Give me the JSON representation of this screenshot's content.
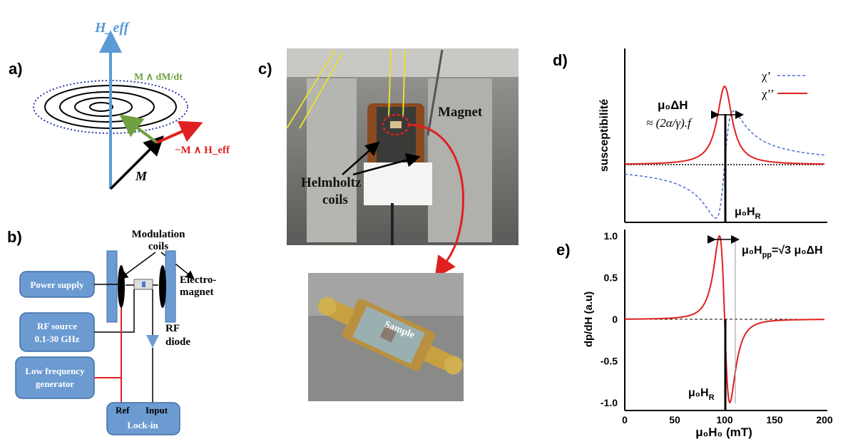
{
  "colors": {
    "h_eff": "#5b9bd5",
    "cross_dm": "#70a040",
    "cross_heff": "#e02020",
    "box_fill": "#6b9bd1",
    "curve_red": "#e02020",
    "curve_blue": "#4a6fd6"
  },
  "panel_a": {
    "label": "a)",
    "h_eff": "H_eff",
    "m_cross_dm_dt": "M ∧ dM/dt",
    "minus_m_cross_heff": "−M ∧ H_eff",
    "m": "M"
  },
  "panel_b": {
    "label": "b)",
    "modulation_coils": [
      "Modulation",
      "coils"
    ],
    "electromagnet": [
      "Electro-",
      "magnet"
    ],
    "power_supply": "Power supply",
    "rf_source": [
      "RF source",
      "0.1-30 GHz"
    ],
    "low_freq": [
      "Low frequency",
      "generator"
    ],
    "rf_diode": [
      "RF",
      "diode"
    ],
    "ref": "Ref",
    "input": "Input",
    "lockin": "Lock-in"
  },
  "panel_c": {
    "label": "c)",
    "magnet": "Magnet",
    "helmholtz": [
      "Helmholtz",
      "coils"
    ],
    "sample": "Sample"
  },
  "panel_d": {
    "label": "d)",
    "ylabel": "susceptibilité",
    "legend_chi1": "χ’",
    "legend_chi2": "χ’’",
    "delta_h": "μ₀ΔH",
    "approx": "≈ (2α/γ).f",
    "resonance": "μ₀H",
    "resonance_sub": "R"
  },
  "panel_e": {
    "label": "e)",
    "ylabel": "dp/dH (a.u)",
    "xlabel": "μ₀H₀ (mT)",
    "hpp": "μ₀H",
    "hpp_sub": "pp",
    "hpp_eq": "=√3 μ₀ΔH",
    "resonance": "μ₀H",
    "resonance_sub": "R",
    "yticks": [
      "1.0",
      "0.5",
      "0",
      "-0.5",
      "-1.0"
    ],
    "xticks": [
      "0",
      "50",
      "100",
      "150",
      "200"
    ]
  },
  "chart_data": [
    {
      "type": "line",
      "title": "",
      "ylabel": "susceptibilité",
      "xlim": [
        0,
        200
      ],
      "series": [
        {
          "name": "χ’",
          "style": "dashed",
          "x": [
            0,
            50,
            80,
            90,
            95,
            100,
            105,
            110,
            120,
            150,
            200
          ],
          "y": [
            -0.02,
            -0.08,
            -0.35,
            -0.95,
            -0.5,
            0,
            0.5,
            0.95,
            0.7,
            0.28,
            0.12
          ]
        },
        {
          "name": "χ’’",
          "style": "solid",
          "x": [
            0,
            50,
            80,
            90,
            95,
            100,
            105,
            110,
            120,
            150,
            200
          ],
          "y": [
            0.01,
            0.06,
            0.3,
            0.7,
            0.9,
            1.0,
            0.9,
            0.7,
            0.3,
            0.06,
            0.01
          ]
        }
      ]
    },
    {
      "type": "line",
      "title": "",
      "xlabel": "μ₀H₀ (mT)",
      "ylabel": "dp/dH (a.u)",
      "xlim": [
        0,
        200
      ],
      "ylim": [
        -1.0,
        1.0
      ],
      "x_ticks": [
        0,
        50,
        100,
        150,
        200
      ],
      "y_ticks": [
        1.0,
        0.5,
        0,
        -0.5,
        -1.0
      ],
      "series": [
        {
          "name": "",
          "x": [
            0,
            25,
            50,
            70,
            80,
            90,
            95,
            100,
            105,
            110,
            120,
            140,
            170,
            200
          ],
          "y": [
            0.02,
            0.06,
            0.15,
            0.38,
            0.62,
            0.98,
            0.7,
            0.0,
            -0.7,
            -0.98,
            -0.62,
            -0.25,
            -0.07,
            -0.02
          ]
        }
      ]
    }
  ]
}
